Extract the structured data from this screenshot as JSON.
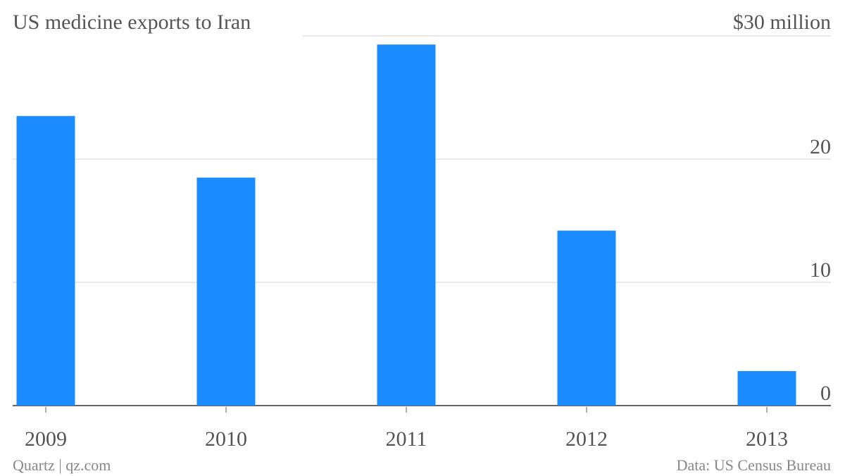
{
  "chart_data": {
    "type": "bar",
    "title": "US medicine exports to Iran",
    "categories": [
      "2009",
      "2010",
      "2011",
      "2012",
      "2013"
    ],
    "values": [
      23.5,
      18.5,
      29.3,
      14.2,
      2.8
    ],
    "color": "#1a8cff",
    "ylim": [
      0,
      30
    ],
    "yticks": [
      0,
      10,
      20,
      {
        "value": 30,
        "label": "$30 million"
      }
    ],
    "grid": true,
    "source": "Data: US Census Bureau",
    "credit": "Quartz | qz.com"
  }
}
